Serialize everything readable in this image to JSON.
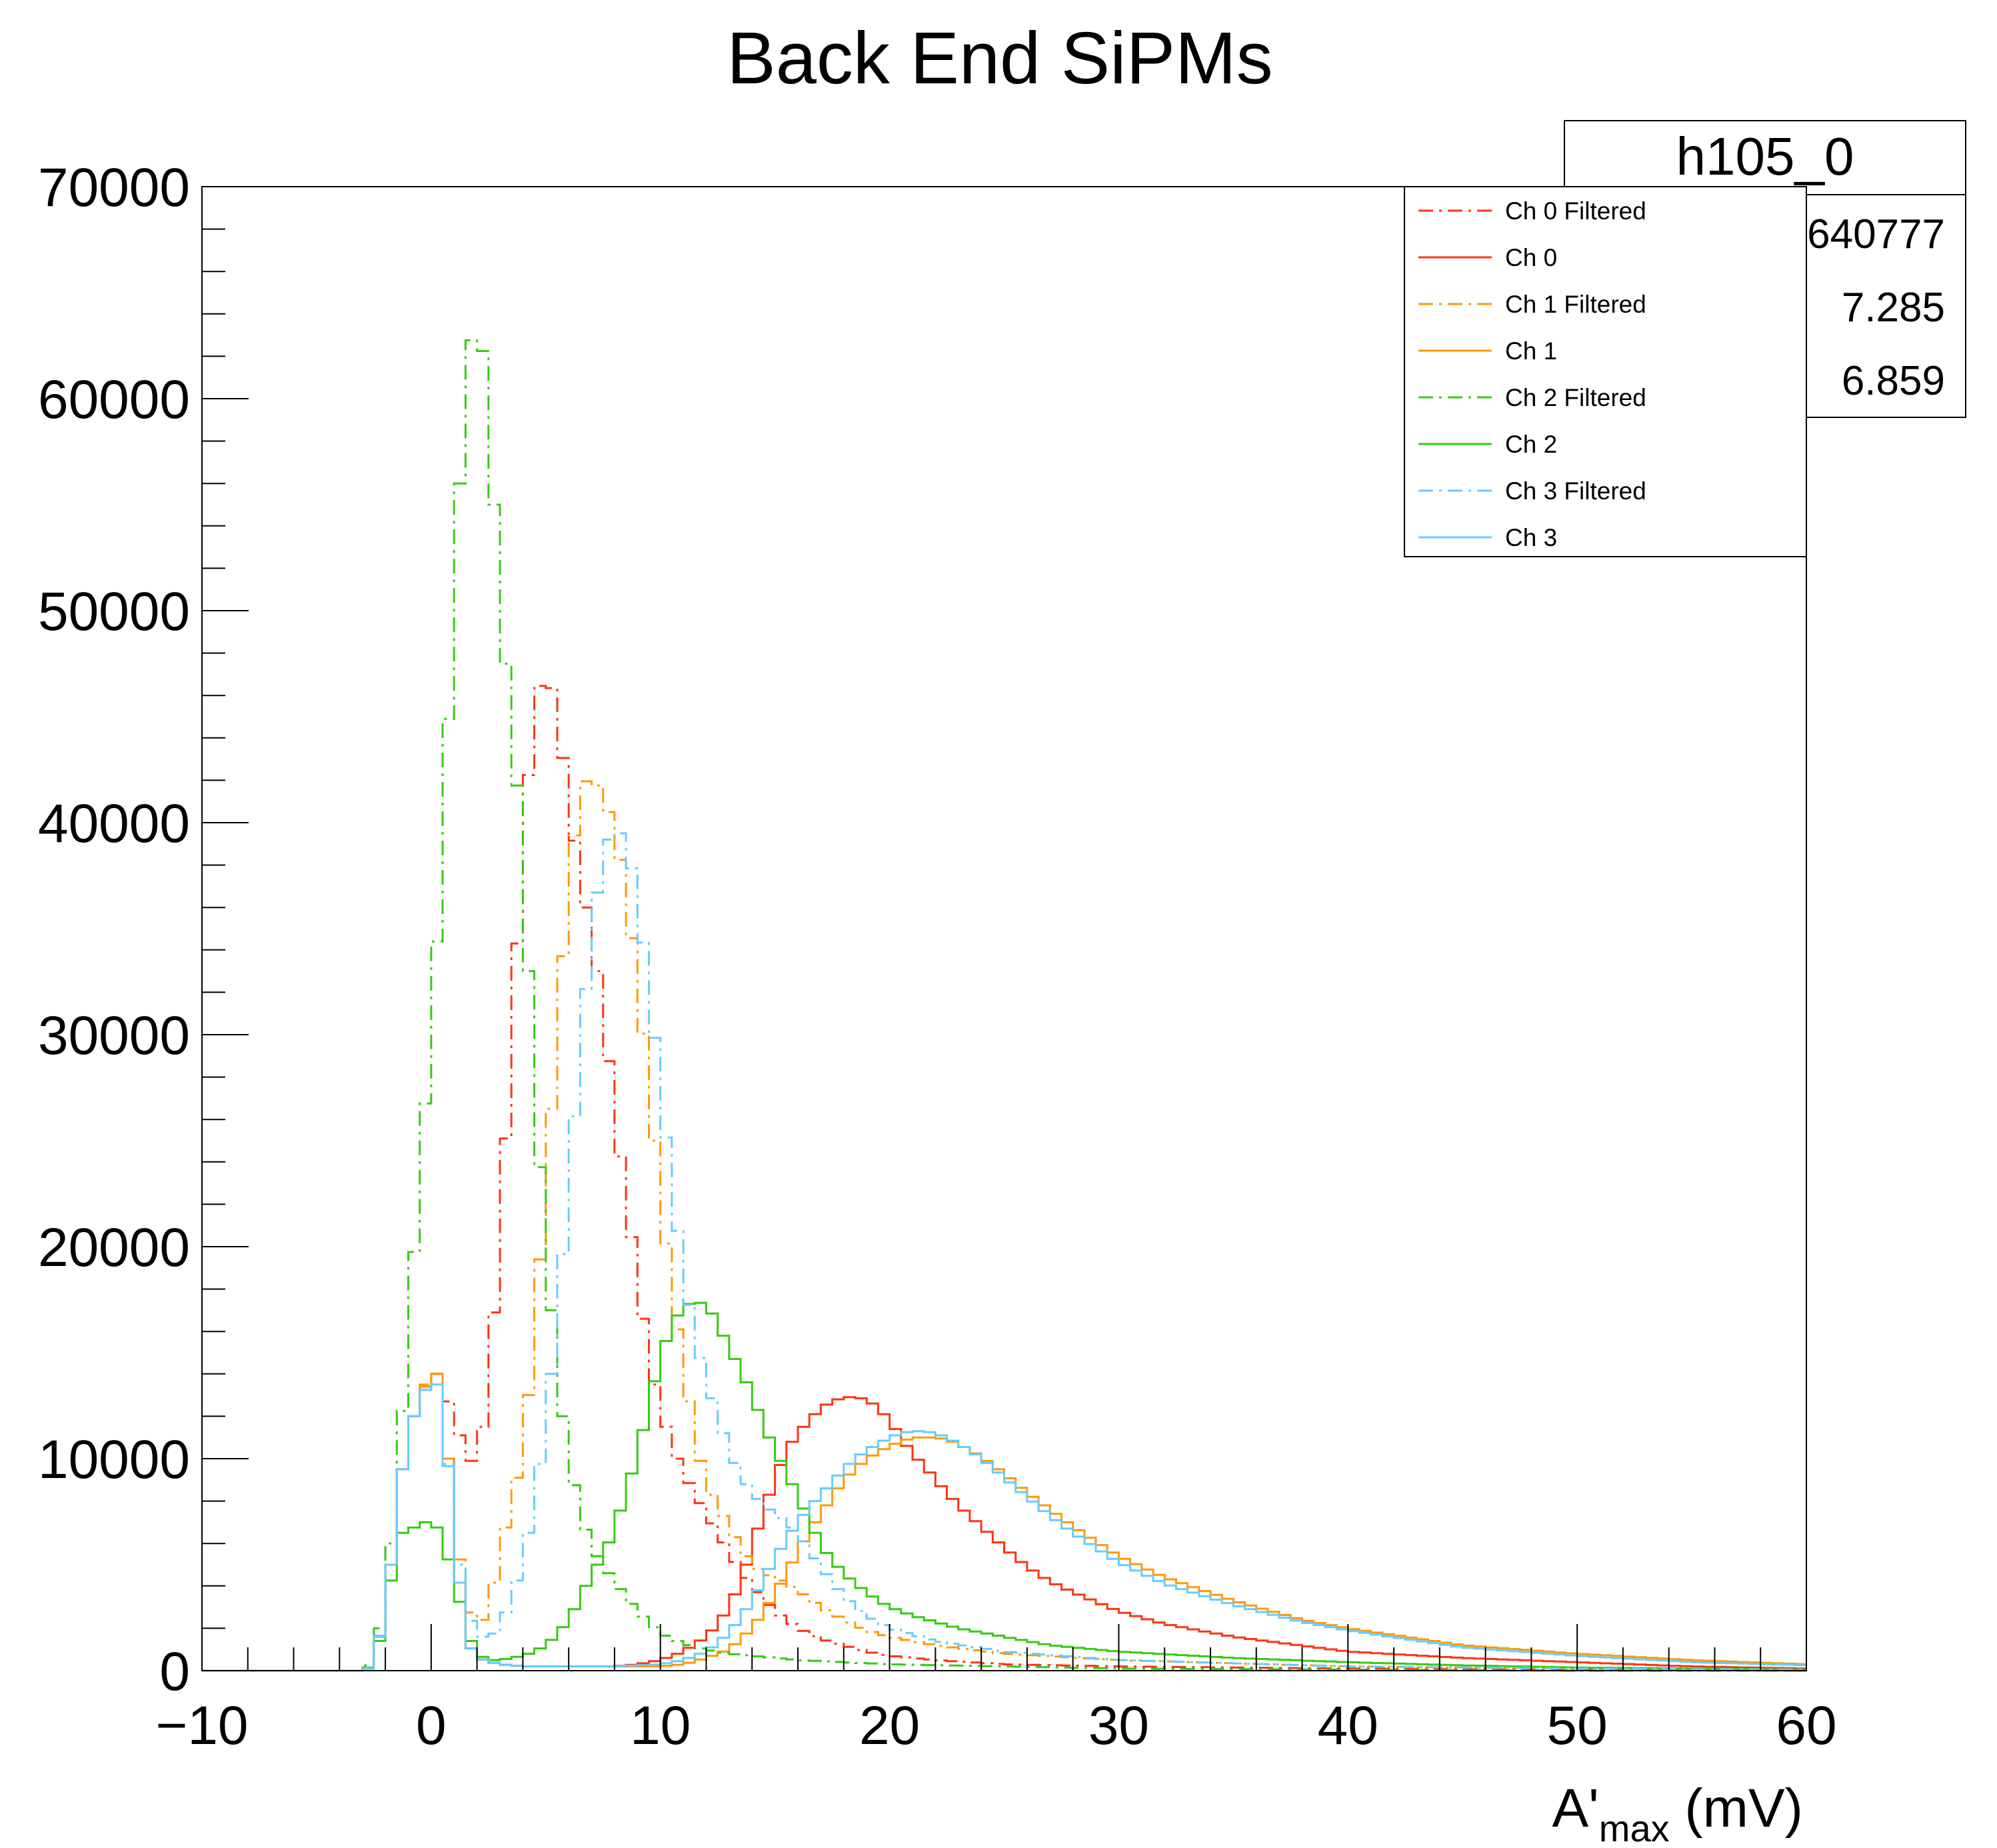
{
  "chart_data": {
    "type": "line",
    "title": "Back End SiPMs",
    "xlabel": "A'",
    "xlabel_subscript": "max",
    "xlabel_unit": " (mV)",
    "ylabel": "",
    "xlim": [
      -10,
      60
    ],
    "ylim": [
      0,
      70000
    ],
    "x_ticks": [
      -10,
      0,
      10,
      20,
      30,
      40,
      50,
      60
    ],
    "x_tick_labels": [
      "−10",
      "0",
      "10",
      "20",
      "30",
      "40",
      "50",
      "60"
    ],
    "y_ticks": [
      0,
      10000,
      20000,
      30000,
      40000,
      50000,
      60000,
      70000
    ],
    "y_tick_labels": [
      "0",
      "10000",
      "20000",
      "30000",
      "40000",
      "50000",
      "60000",
      "70000"
    ],
    "grid": false,
    "legend_position": "top-right",
    "stats_box": {
      "title": "h105_0",
      "values": [
        "640777",
        "7.285",
        "6.859"
      ]
    },
    "series": [
      {
        "name": "Ch 0 Filtered",
        "color": "#ff3311",
        "dash": "dashdot",
        "x": [
          -10,
          -3,
          -2.5,
          -2,
          -1.5,
          -1,
          -0.5,
          0,
          0.5,
          1,
          1.5,
          2,
          2.5,
          3,
          3.5,
          4,
          4.5,
          5,
          5.5,
          6,
          6.5,
          7,
          7.5,
          8,
          8.5,
          9,
          9.5,
          10,
          10.5,
          11,
          11.5,
          12,
          12.5,
          13,
          14,
          15,
          16,
          17,
          18,
          19,
          20,
          22,
          25,
          30,
          40,
          50,
          60
        ],
        "y": [
          0,
          0,
          300,
          3000,
          7000,
          12000,
          12000,
          14800,
          13200,
          12200,
          10000,
          9800,
          13200,
          20600,
          29600,
          39000,
          45500,
          47400,
          45300,
          40800,
          37500,
          34500,
          31500,
          26000,
          22500,
          18400,
          14800,
          12200,
          10800,
          9200,
          8500,
          7300,
          6600,
          5500,
          4000,
          2800,
          2000,
          1500,
          1200,
          900,
          700,
          500,
          300,
          200,
          100,
          50,
          0
        ]
      },
      {
        "name": "Ch 0",
        "color": "#ff3311",
        "dash": "solid",
        "x": [
          -10,
          -3,
          -2.5,
          -2,
          -1.5,
          -1,
          -0.5,
          0,
          0.5,
          1,
          1.5,
          2,
          3,
          4,
          6,
          8,
          9,
          10,
          11,
          12,
          12.5,
          13,
          13.5,
          14,
          14.5,
          15,
          15.5,
          16,
          16.5,
          17,
          17.5,
          18,
          18.5,
          19,
          19.5,
          20,
          20.5,
          21,
          21.5,
          22,
          23,
          24,
          25,
          26,
          27,
          28,
          30,
          32,
          35,
          40,
          45,
          50,
          55,
          60
        ],
        "y": [
          0,
          0,
          200,
          3000,
          7000,
          12000,
          12000,
          14800,
          13200,
          6800,
          1500,
          600,
          300,
          200,
          200,
          200,
          300,
          500,
          900,
          1600,
          2200,
          3000,
          4200,
          5800,
          7600,
          9000,
          10400,
          11200,
          11800,
          12400,
          12700,
          12900,
          12900,
          12800,
          12400,
          11800,
          11000,
          10200,
          9700,
          9000,
          7800,
          6800,
          5800,
          4900,
          4200,
          3700,
          2800,
          2200,
          1600,
          900,
          600,
          400,
          200,
          100
        ]
      },
      {
        "name": "Ch 1 Filtered",
        "color": "#ff9900",
        "dash": "dashdot",
        "x": [
          -10,
          -3,
          -2.5,
          -2,
          -1.5,
          -1,
          -0.5,
          0,
          0.5,
          1,
          1.5,
          2,
          2.5,
          3,
          3.5,
          4,
          4.5,
          5,
          5.5,
          6,
          6.5,
          7,
          7.5,
          8,
          8.5,
          9,
          9.5,
          10,
          10.5,
          11,
          11.5,
          12,
          12.5,
          13,
          13.5,
          14,
          14.5,
          15,
          15.5,
          16,
          16.5,
          17,
          18,
          19,
          20,
          22,
          25,
          30,
          40,
          50,
          60
        ],
        "y": [
          0,
          0,
          300,
          3000,
          7000,
          12000,
          12000,
          15000,
          13000,
          7000,
          3500,
          2000,
          2800,
          5500,
          8000,
          10200,
          15800,
          23000,
          30000,
          37400,
          41400,
          42500,
          41000,
          40000,
          36500,
          32600,
          27500,
          22500,
          17800,
          14400,
          11000,
          8800,
          7800,
          6800,
          5800,
          5000,
          4600,
          4400,
          4100,
          3800,
          3400,
          3000,
          2400,
          1900,
          1600,
          1200,
          800,
          500,
          200,
          100,
          50
        ]
      },
      {
        "name": "Ch 1",
        "color": "#ff9900",
        "dash": "solid",
        "x": [
          -10,
          -3,
          -2.5,
          -2,
          -1.5,
          -1,
          -0.5,
          0,
          0.5,
          1,
          1.5,
          2,
          3,
          4,
          6,
          8,
          10,
          11,
          12,
          13,
          13.5,
          14,
          14.5,
          15,
          15.5,
          16,
          16.5,
          17,
          17.5,
          18,
          18.5,
          19,
          19.5,
          20,
          20.5,
          21,
          21.5,
          22,
          22.5,
          23,
          23.5,
          24,
          24.5,
          25,
          26,
          27,
          28,
          29,
          30,
          32,
          35,
          38,
          40,
          45,
          50,
          55,
          60
        ],
        "y": [
          0,
          0,
          200,
          3000,
          7000,
          12000,
          12000,
          14800,
          13200,
          6800,
          1500,
          600,
          300,
          200,
          200,
          200,
          200,
          300,
          600,
          1000,
          1500,
          2000,
          2800,
          3600,
          4600,
          5600,
          6600,
          7400,
          8200,
          9000,
          9500,
          10000,
          10300,
          10600,
          10800,
          11000,
          11000,
          11000,
          10900,
          10700,
          10400,
          10100,
          9700,
          9300,
          8400,
          7600,
          6800,
          6100,
          5400,
          4400,
          3300,
          2400,
          2000,
          1200,
          800,
          500,
          300
        ]
      },
      {
        "name": "Ch 2 Filtered",
        "color": "#33cc11",
        "dash": "dashdot",
        "x": [
          -10,
          -3,
          -2.5,
          -2,
          -1.5,
          -1,
          -0.5,
          0,
          0.5,
          1,
          1.5,
          2,
          2.5,
          3,
          3.5,
          4,
          4.5,
          5,
          5.5,
          6,
          6.5,
          7,
          7.5,
          8,
          8.5,
          9,
          9.5,
          10,
          10.5,
          11,
          11.5,
          12,
          12.5,
          13,
          14,
          15,
          16,
          18,
          20,
          25,
          30,
          40,
          50,
          60
        ],
        "y": [
          0,
          0,
          500,
          3500,
          8500,
          16000,
          23500,
          30000,
          38800,
          51000,
          61000,
          64500,
          60000,
          50000,
          45000,
          38500,
          27500,
          20000,
          14000,
          10000,
          7500,
          5800,
          5000,
          4200,
          3500,
          2800,
          2300,
          1800,
          1500,
          1300,
          1100,
          1000,
          900,
          800,
          700,
          600,
          500,
          400,
          300,
          200,
          100,
          50,
          0,
          0
        ]
      },
      {
        "name": "Ch 2",
        "color": "#33cc11",
        "dash": "solid",
        "x": [
          -10,
          -3,
          -2.5,
          -2,
          -1.5,
          -1,
          -0.5,
          0,
          0.5,
          1,
          1.5,
          2,
          2.5,
          3,
          3.5,
          4,
          4.5,
          5,
          5.5,
          6,
          6.5,
          7,
          7.5,
          8,
          8.5,
          9,
          9.5,
          10,
          10.5,
          11,
          11.5,
          12,
          12.5,
          13,
          13.5,
          14,
          14.5,
          15,
          15.5,
          16,
          16.5,
          17,
          17.5,
          18,
          18.5,
          19,
          19.5,
          20,
          21,
          22,
          23,
          24,
          25,
          26,
          27,
          28,
          30,
          35,
          40,
          45,
          50,
          55,
          60
        ],
        "y": [
          0,
          0,
          300,
          2500,
          6000,
          7000,
          6500,
          7500,
          6000,
          4500,
          2000,
          800,
          500,
          500,
          600,
          700,
          900,
          1200,
          1700,
          2400,
          3400,
          4600,
          5400,
          6700,
          8400,
          10200,
          12500,
          14800,
          16300,
          17200,
          17400,
          17300,
          16400,
          15200,
          14200,
          13000,
          11600,
          10400,
          9400,
          8200,
          7100,
          5900,
          5200,
          4600,
          4100,
          3700,
          3300,
          3000,
          2600,
          2300,
          2000,
          1800,
          1600,
          1400,
          1200,
          1100,
          900,
          600,
          400,
          250,
          150,
          100,
          50
        ]
      },
      {
        "name": "Ch 3 Filtered",
        "color": "#66ccff",
        "dash": "dashdot",
        "x": [
          -10,
          -3,
          -2.5,
          -2,
          -1.5,
          -1,
          -0.5,
          0,
          0.5,
          1,
          1.5,
          2,
          2.5,
          3,
          3.5,
          4,
          4.5,
          5,
          5.5,
          6,
          6.5,
          7,
          7.5,
          8,
          8.5,
          9,
          9.5,
          10,
          10.5,
          11,
          11.5,
          12,
          12.5,
          13,
          13.5,
          14,
          14.5,
          15,
          15.5,
          16,
          16.5,
          17,
          18,
          19,
          20,
          22,
          25,
          30,
          40,
          50,
          60
        ],
        "y": [
          0,
          0,
          300,
          3000,
          7000,
          12000,
          12000,
          14500,
          12500,
          7000,
          3000,
          1700,
          1500,
          2000,
          3500,
          5000,
          8000,
          11500,
          16500,
          22800,
          29500,
          34800,
          38600,
          39800,
          39200,
          36500,
          32200,
          27500,
          22800,
          18700,
          15800,
          13700,
          12000,
          10400,
          9200,
          8400,
          7800,
          7400,
          7000,
          6500,
          5700,
          4900,
          3500,
          2600,
          2000,
          1400,
          900,
          500,
          200,
          100,
          50
        ]
      },
      {
        "name": "Ch 3",
        "color": "#66ccff",
        "dash": "solid",
        "x": [
          -10,
          -3,
          -2.5,
          -2,
          -1.5,
          -1,
          -0.5,
          0,
          0.5,
          1,
          1.5,
          2,
          3,
          4,
          6,
          8,
          10,
          11,
          12,
          12.5,
          13,
          13.5,
          14,
          14.5,
          15,
          15.5,
          16,
          16.5,
          17,
          17.5,
          18,
          18.5,
          19,
          19.5,
          20,
          20.5,
          21,
          21.5,
          22,
          22.5,
          23,
          23.5,
          24,
          24.5,
          25,
          26,
          27,
          28,
          29,
          30,
          32,
          35,
          38,
          40,
          45,
          50,
          55,
          60
        ],
        "y": [
          0,
          0,
          200,
          3000,
          7000,
          12000,
          12000,
          14500,
          12500,
          6800,
          1500,
          600,
          300,
          200,
          200,
          200,
          300,
          500,
          900,
          1300,
          1800,
          2500,
          3300,
          4300,
          5300,
          6200,
          7000,
          7700,
          8300,
          8900,
          9500,
          10000,
          10400,
          10700,
          11000,
          11200,
          11300,
          11300,
          11200,
          11000,
          10700,
          10400,
          10000,
          9600,
          9100,
          8200,
          7300,
          6500,
          5800,
          5100,
          4100,
          3100,
          2300,
          1900,
          1100,
          700,
          400,
          250
        ]
      }
    ]
  }
}
